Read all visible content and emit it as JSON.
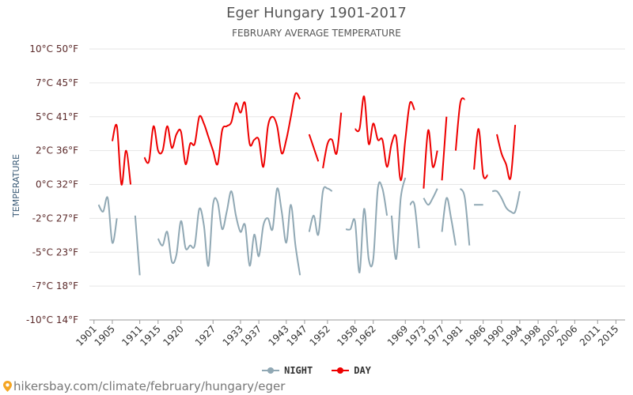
{
  "title": "Eger Hungary 1901-2017",
  "subtitle": "FEBRUARY AVERAGE TEMPERATURE",
  "footer": "hikersbay.com/climate/february/hungary/eger",
  "colors": {
    "day": "#ee0000",
    "night": "#90a8b4",
    "grid": "#e6e6e6",
    "ytick": "#5b2a2a"
  },
  "chart_data": {
    "type": "line",
    "ylabel": "TEMPERATURE",
    "ylim": [
      -10,
      10
    ],
    "y_ticks": [
      {
        "value": 10,
        "label": "10°C 50°F"
      },
      {
        "value": 7.5,
        "label": "7°C 45°F"
      },
      {
        "value": 5,
        "label": "5°C 41°F"
      },
      {
        "value": 2.5,
        "label": "2°C 36°F"
      },
      {
        "value": 0,
        "label": "0°C 32°F"
      },
      {
        "value": -2.5,
        "label": "-2°C 27°F"
      },
      {
        "value": -5,
        "label": "-5°C 23°F"
      },
      {
        "value": -7.5,
        "label": "-7°C 18°F"
      },
      {
        "value": -10,
        "label": "-10°C 14°F"
      }
    ],
    "xlim": [
      1900,
      2017
    ],
    "x_ticks": [
      1901,
      1905,
      1911,
      1915,
      1920,
      1927,
      1933,
      1937,
      1943,
      1947,
      1952,
      1958,
      1962,
      1969,
      1973,
      1977,
      1981,
      1986,
      1990,
      1994,
      1998,
      2002,
      2006,
      2011,
      2015
    ],
    "legend": [
      "NIGHT",
      "DAY"
    ],
    "series": [
      {
        "name": "DAY",
        "segments": [
          [
            [
              1905,
              3.2
            ],
            [
              1906,
              4.3
            ],
            [
              1907,
              0.0
            ],
            [
              1908,
              2.5
            ],
            [
              1909,
              0.0
            ]
          ],
          [
            [
              1912,
              2.0
            ],
            [
              1913,
              1.7
            ],
            [
              1914,
              4.3
            ],
            [
              1915,
              2.5
            ],
            [
              1916,
              2.5
            ],
            [
              1917,
              4.3
            ],
            [
              1918,
              2.7
            ],
            [
              1919,
              3.7
            ],
            [
              1920,
              3.9
            ],
            [
              1921,
              1.5
            ],
            [
              1922,
              3.0
            ],
            [
              1923,
              3.0
            ],
            [
              1924,
              5.0
            ],
            [
              1925,
              4.5
            ],
            [
              1926,
              3.5
            ],
            [
              1927,
              2.5
            ],
            [
              1928,
              1.5
            ],
            [
              1929,
              4.0
            ],
            [
              1930,
              4.3
            ],
            [
              1931,
              4.6
            ],
            [
              1932,
              6.0
            ],
            [
              1933,
              5.3
            ],
            [
              1934,
              6.0
            ],
            [
              1935,
              3.0
            ],
            [
              1936,
              3.3
            ],
            [
              1937,
              3.3
            ],
            [
              1938,
              1.3
            ],
            [
              1939,
              4.3
            ],
            [
              1940,
              5.0
            ],
            [
              1941,
              4.3
            ],
            [
              1942,
              2.3
            ],
            [
              1943,
              3.3
            ],
            [
              1944,
              5.0
            ],
            [
              1945,
              6.7
            ],
            [
              1946,
              6.3
            ]
          ],
          [
            [
              1948,
              3.7
            ],
            [
              1949,
              2.7
            ],
            [
              1950,
              1.7
            ]
          ],
          [
            [
              1951,
              1.2
            ],
            [
              1952,
              3.0
            ],
            [
              1953,
              3.3
            ],
            [
              1954,
              2.3
            ],
            [
              1955,
              5.3
            ]
          ],
          [
            [
              1958,
              4.1
            ],
            [
              1959,
              4.1
            ],
            [
              1960,
              6.5
            ],
            [
              1961,
              3.0
            ],
            [
              1962,
              4.5
            ],
            [
              1963,
              3.3
            ],
            [
              1964,
              3.3
            ],
            [
              1965,
              1.3
            ],
            [
              1966,
              3.0
            ],
            [
              1967,
              3.5
            ],
            [
              1968,
              0.3
            ],
            [
              1969,
              3.3
            ],
            [
              1970,
              6.0
            ],
            [
              1971,
              5.5
            ]
          ],
          [
            [
              1973,
              -0.3
            ],
            [
              1974,
              4.0
            ],
            [
              1975,
              1.3
            ],
            [
              1976,
              2.5
            ]
          ],
          [
            [
              1977,
              0.3
            ],
            [
              1978,
              5.0
            ]
          ],
          [
            [
              1980,
              2.5
            ],
            [
              1981,
              6.0
            ],
            [
              1982,
              6.3
            ]
          ],
          [
            [
              1984,
              1.1
            ],
            [
              1985,
              4.1
            ],
            [
              1986,
              0.7
            ],
            [
              1987,
              0.7
            ]
          ],
          [
            [
              1989,
              3.7
            ],
            [
              1990,
              2.3
            ],
            [
              1991,
              1.5
            ],
            [
              1992,
              0.5
            ],
            [
              1993,
              4.4
            ]
          ]
        ]
      },
      {
        "name": "NIGHT",
        "segments": [
          [
            [
              1902,
              -1.5
            ],
            [
              1903,
              -2.0
            ],
            [
              1904,
              -1.0
            ],
            [
              1905,
              -4.3
            ],
            [
              1906,
              -2.5
            ]
          ],
          [
            [
              1910,
              -2.3
            ],
            [
              1911,
              -6.7
            ]
          ],
          [
            [
              1915,
              -4.0
            ],
            [
              1916,
              -4.5
            ],
            [
              1917,
              -3.5
            ],
            [
              1918,
              -5.7
            ],
            [
              1919,
              -5.2
            ],
            [
              1920,
              -2.7
            ],
            [
              1921,
              -4.7
            ],
            [
              1922,
              -4.5
            ],
            [
              1923,
              -4.5
            ],
            [
              1924,
              -1.8
            ],
            [
              1925,
              -3.0
            ],
            [
              1926,
              -6.0
            ],
            [
              1927,
              -1.5
            ],
            [
              1928,
              -1.3
            ],
            [
              1929,
              -3.3
            ],
            [
              1930,
              -2.0
            ],
            [
              1931,
              -0.5
            ],
            [
              1932,
              -2.3
            ],
            [
              1933,
              -3.5
            ],
            [
              1934,
              -3.0
            ],
            [
              1935,
              -6.0
            ],
            [
              1936,
              -3.7
            ],
            [
              1937,
              -5.3
            ],
            [
              1938,
              -3.0
            ],
            [
              1939,
              -2.5
            ],
            [
              1940,
              -3.3
            ],
            [
              1941,
              -0.3
            ],
            [
              1942,
              -2.0
            ],
            [
              1943,
              -4.3
            ],
            [
              1944,
              -1.5
            ],
            [
              1945,
              -4.5
            ],
            [
              1946,
              -6.7
            ]
          ],
          [
            [
              1948,
              -3.5
            ],
            [
              1949,
              -2.3
            ],
            [
              1950,
              -3.7
            ],
            [
              1951,
              -0.5
            ],
            [
              1952,
              -0.3
            ],
            [
              1953,
              -0.5
            ]
          ],
          [
            [
              1956,
              -3.3
            ],
            [
              1957,
              -3.3
            ],
            [
              1958,
              -2.7
            ],
            [
              1959,
              -6.5
            ],
            [
              1960,
              -1.8
            ],
            [
              1961,
              -5.5
            ],
            [
              1962,
              -5.5
            ],
            [
              1963,
              -0.3
            ],
            [
              1964,
              -0.3
            ],
            [
              1965,
              -2.3
            ]
          ],
          [
            [
              1966,
              -2.3
            ],
            [
              1967,
              -5.5
            ],
            [
              1968,
              -1.0
            ],
            [
              1969,
              0.5
            ]
          ],
          [
            [
              1970,
              -1.5
            ],
            [
              1971,
              -1.5
            ],
            [
              1972,
              -4.7
            ]
          ],
          [
            [
              1973,
              -1.0
            ],
            [
              1974,
              -1.5
            ],
            [
              1975,
              -1.0
            ],
            [
              1976,
              -0.3
            ]
          ],
          [
            [
              1977,
              -3.5
            ],
            [
              1978,
              -1.0
            ],
            [
              1979,
              -2.5
            ],
            [
              1980,
              -4.5
            ]
          ],
          [
            [
              1981,
              -0.3
            ],
            [
              1982,
              -1.0
            ],
            [
              1983,
              -4.5
            ]
          ],
          [
            [
              1984,
              -1.5
            ],
            [
              1985,
              -1.5
            ],
            [
              1986,
              -1.5
            ]
          ],
          [
            [
              1988,
              -0.5
            ],
            [
              1989,
              -0.5
            ],
            [
              1990,
              -1.0
            ],
            [
              1991,
              -1.7
            ],
            [
              1992,
              -2.0
            ],
            [
              1993,
              -2.0
            ],
            [
              1994,
              -0.5
            ]
          ]
        ]
      }
    ]
  }
}
